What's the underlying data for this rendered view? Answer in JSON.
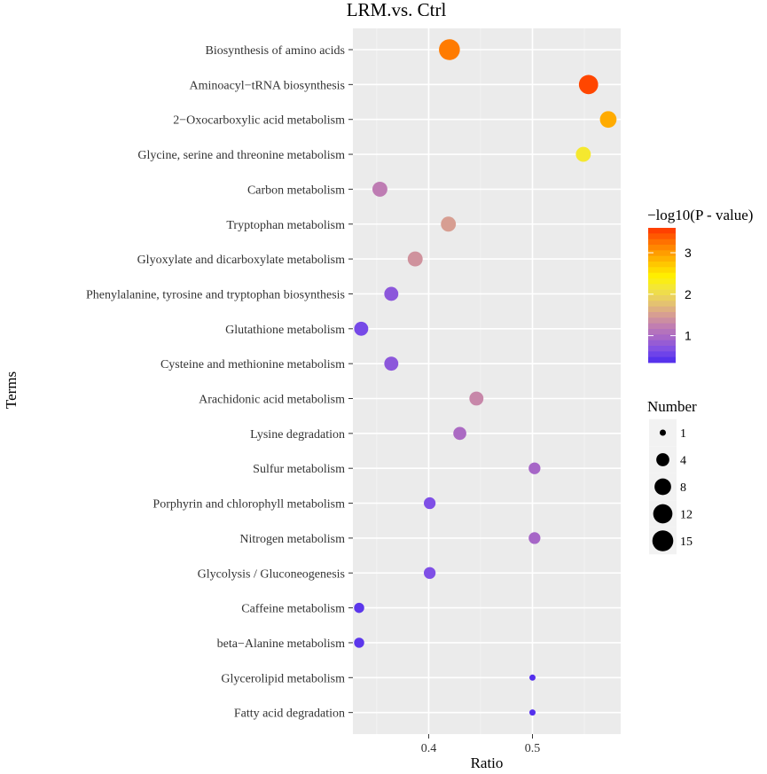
{
  "chart_data": {
    "type": "scatter",
    "title": "LRM.vs. Ctrl",
    "xlabel": "Ratio",
    "ylabel": "Terms",
    "xlim": [
      0.327,
      0.585
    ],
    "x_ticks": [
      "0.4",
      "0.5"
    ],
    "x_tick_values": [
      0.4,
      0.5
    ],
    "grid": true,
    "points": [
      {
        "term": "Biosynthesis of amino acids",
        "ratio": 0.42,
        "number": 15,
        "neglog10p": 3.2
      },
      {
        "term": "Aminoacyl−tRNA biosynthesis",
        "ratio": 0.554,
        "number": 12,
        "neglog10p": 3.5
      },
      {
        "term": "2−Oxocarboxylic acid metabolism",
        "ratio": 0.573,
        "number": 8,
        "neglog10p": 2.9
      },
      {
        "term": "Glycine, serine and threonine metabolism",
        "ratio": 0.549,
        "number": 6,
        "neglog10p": 2.2
      },
      {
        "term": "Carbon metabolism",
        "ratio": 0.353,
        "number": 6,
        "neglog10p": 1.2
      },
      {
        "term": "Tryptophan metabolism",
        "ratio": 0.419,
        "number": 6,
        "neglog10p": 1.5
      },
      {
        "term": "Glyoxylate and dicarboxylate metabolism",
        "ratio": 0.387,
        "number": 6,
        "neglog10p": 1.4
      },
      {
        "term": "Phenylalanine, tyrosine and tryptophan biosynthesis",
        "ratio": 0.364,
        "number": 5,
        "neglog10p": 0.75
      },
      {
        "term": "Glutathione metabolism",
        "ratio": 0.335,
        "number": 5,
        "neglog10p": 0.6
      },
      {
        "term": "Cysteine and methionine metabolism",
        "ratio": 0.364,
        "number": 5,
        "neglog10p": 0.75
      },
      {
        "term": "Arachidonic acid metabolism",
        "ratio": 0.446,
        "number": 5,
        "neglog10p": 1.3
      },
      {
        "term": "Lysine degradation",
        "ratio": 0.43,
        "number": 4,
        "neglog10p": 1.0
      },
      {
        "term": "Sulfur metabolism",
        "ratio": 0.502,
        "number": 3,
        "neglog10p": 0.95
      },
      {
        "term": "Porphyrin and chlorophyll metabolism",
        "ratio": 0.401,
        "number": 3,
        "neglog10p": 0.65
      },
      {
        "term": "Nitrogen metabolism",
        "ratio": 0.502,
        "number": 3,
        "neglog10p": 0.95
      },
      {
        "term": "Glycolysis / Gluconeogenesis",
        "ratio": 0.401,
        "number": 3,
        "neglog10p": 0.65
      },
      {
        "term": "Caffeine metabolism",
        "ratio": 0.333,
        "number": 2,
        "neglog10p": 0.45
      },
      {
        "term": "beta−Alanine metabolism",
        "ratio": 0.333,
        "number": 2,
        "neglog10p": 0.45
      },
      {
        "term": "Glycerolipid metabolism",
        "ratio": 0.5,
        "number": 1,
        "neglog10p": 0.4
      },
      {
        "term": "Fatty acid degradation",
        "ratio": 0.5,
        "number": 1,
        "neglog10p": 0.4
      }
    ],
    "color_legend": {
      "title": "−log10(P - value)",
      "range": [
        0.35,
        3.6
      ],
      "ticks": [
        "1",
        "2",
        "3"
      ],
      "tick_values": [
        1,
        2,
        3
      ],
      "colors": [
        "#4B2AEE",
        "#7E4FE6",
        "#A565C8",
        "#C27FB0",
        "#D9A28E",
        "#E7C96A",
        "#F2E440",
        "#FFF200",
        "#FFC800",
        "#FF9A00",
        "#FF6A00",
        "#FF3300"
      ]
    },
    "size_legend": {
      "title": "Number",
      "labels": [
        "1",
        "4",
        "8",
        "12",
        "15"
      ],
      "values": [
        1,
        4,
        8,
        12,
        15
      ]
    }
  }
}
